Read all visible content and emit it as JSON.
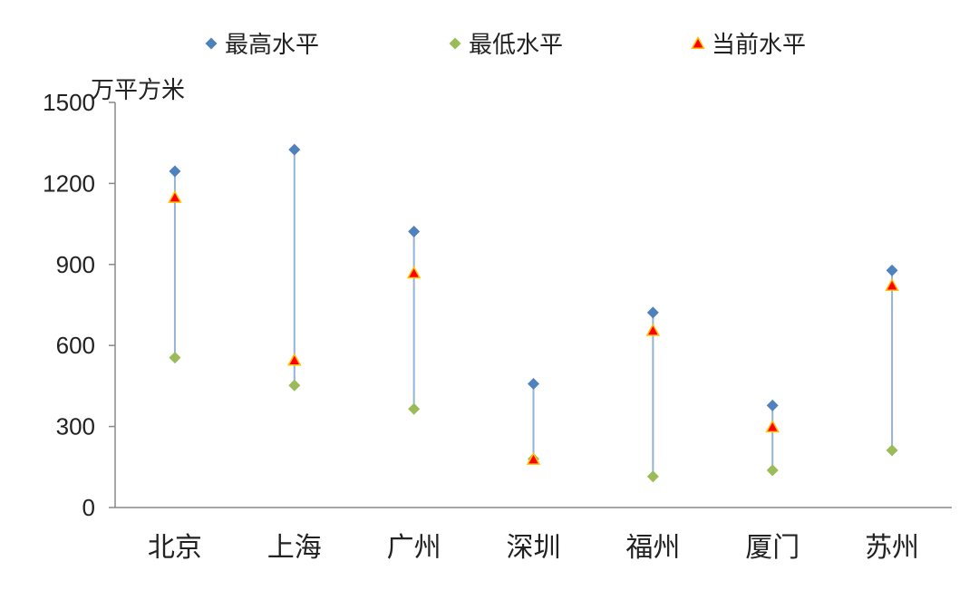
{
  "chart_data": {
    "type": "scatter",
    "ylabel": "万平方米",
    "ylim": [
      0,
      1500
    ],
    "yticks": [
      0,
      300,
      600,
      900,
      1200,
      1500
    ],
    "categories": [
      "北京",
      "上海",
      "广州",
      "深圳",
      "福州",
      "厦门",
      "苏州"
    ],
    "series": [
      {
        "name": "最高水平",
        "marker": "diamond",
        "color": "#4F81BD",
        "values": [
          1245,
          1325,
          1022,
          458,
          722,
          378,
          878
        ]
      },
      {
        "name": "最低水平",
        "marker": "diamond",
        "color": "#9BBB59",
        "values": [
          555,
          452,
          365,
          180,
          115,
          138,
          212
        ]
      },
      {
        "name": "当前水平",
        "marker": "triangle",
        "color": "#FF0000",
        "stroke": "#FFC000",
        "values": [
          1148,
          545,
          868,
          178,
          655,
          298,
          822
        ]
      }
    ],
    "range_line_color": "#95B3D7",
    "legend_position": "top",
    "grid": false
  }
}
